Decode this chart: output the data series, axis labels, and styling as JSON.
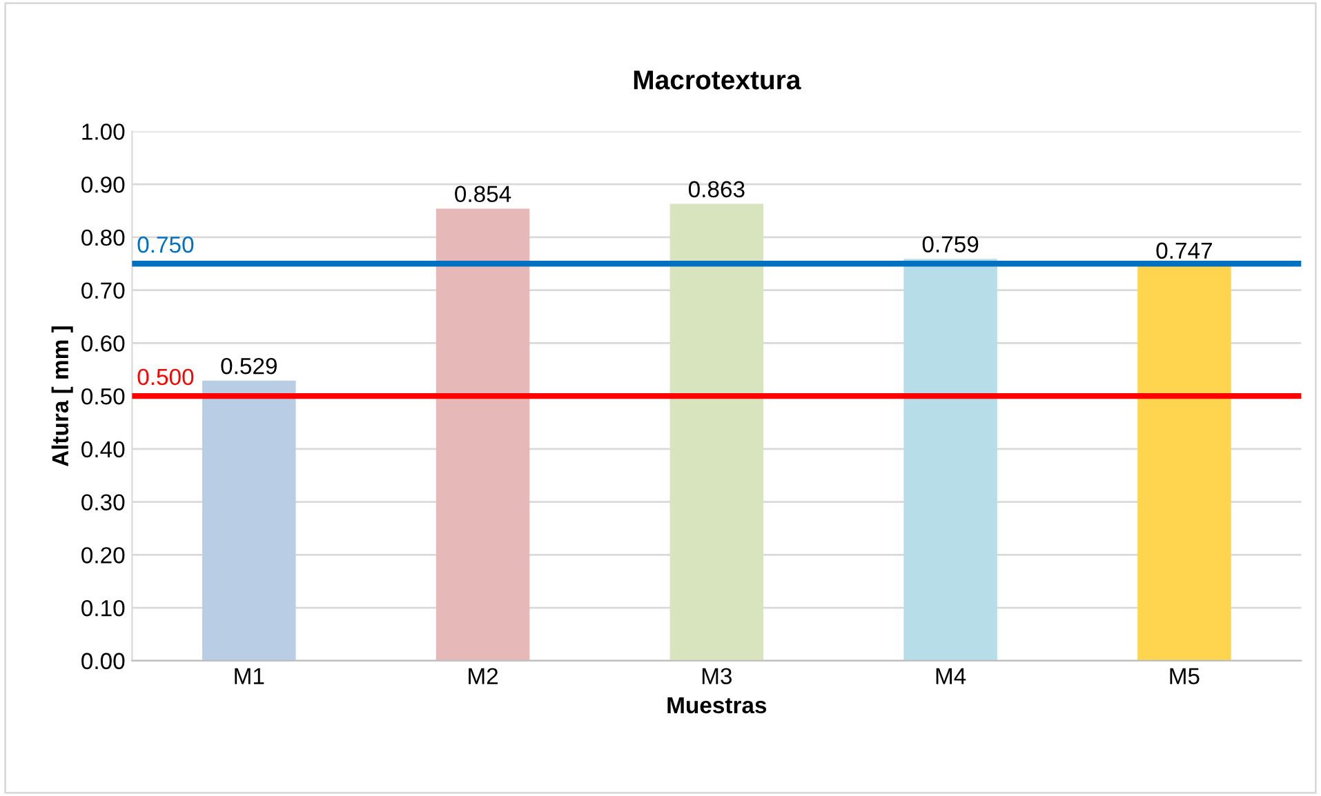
{
  "chart_data": {
    "type": "bar",
    "title": "Macrotextura",
    "xlabel": "Muestras",
    "ylabel": "Altura [ mm ]",
    "categories": [
      "M1",
      "M2",
      "M3",
      "M4",
      "M5"
    ],
    "values": [
      0.529,
      0.854,
      0.863,
      0.759,
      0.747
    ],
    "colors": [
      "#b9cde5",
      "#e6b9b8",
      "#d7e4bd",
      "#b7dee8",
      "#ffd54f"
    ],
    "data_labels": true,
    "ylim": [
      0,
      1
    ],
    "yticks": [
      {
        "value": 0,
        "label": "0.00"
      },
      {
        "value": 0.1,
        "label": "0.10"
      },
      {
        "value": 0.2,
        "label": "0.20"
      },
      {
        "value": 0.3,
        "label": "0.30"
      },
      {
        "value": 0.4,
        "label": "0.40"
      },
      {
        "value": 0.5,
        "label": "0.50"
      },
      {
        "value": 0.6,
        "label": "0.60"
      },
      {
        "value": 0.7,
        "label": "0.70"
      },
      {
        "value": 0.8,
        "label": "0.80"
      },
      {
        "value": 0.9,
        "label": "0.90"
      },
      {
        "value": 1,
        "label": "1.00"
      }
    ],
    "grid": "y",
    "ref_lines": [
      {
        "axis": "y",
        "value": 0.75,
        "label": "0.750",
        "color": "#0070c0"
      },
      {
        "axis": "y",
        "value": 0.5,
        "label": "0.500",
        "color": "#ff0000"
      }
    ]
  }
}
